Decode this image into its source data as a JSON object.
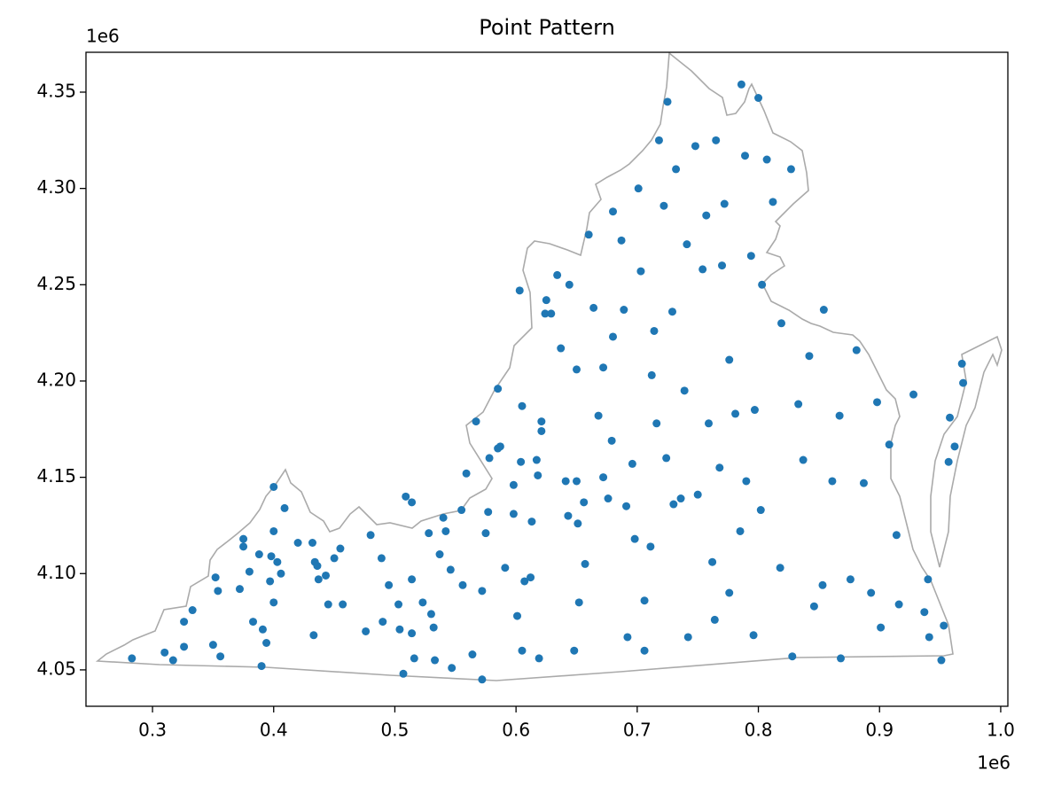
{
  "chart_data": {
    "type": "scatter",
    "title": "Point Pattern",
    "x_offset_label": "1e6",
    "y_offset_label": "1e6",
    "xlim": [
      0.2451,
      1.0059
    ],
    "ylim": [
      4.0311,
      4.3707
    ],
    "xticks": [
      0.3,
      0.4,
      0.5,
      0.6,
      0.7,
      0.8,
      0.9,
      {
        "value": 1,
        "label": "1.0"
      }
    ],
    "yticks": [
      4.05,
      {
        "value": 4.1,
        "label": "4.10"
      },
      4.15,
      {
        "value": 4.2,
        "label": "4.20"
      },
      4.25,
      {
        "value": 4.3,
        "label": "4.30"
      },
      4.35
    ],
    "series": [
      {
        "color": "#1f77b4",
        "x": [
          0.283,
          0.31,
          0.317,
          0.326,
          0.333,
          0.326,
          0.35,
          0.352,
          0.354,
          0.356,
          0.375,
          0.375,
          0.372,
          0.38,
          0.383,
          0.391,
          0.388,
          0.39,
          0.394,
          0.398,
          0.4,
          0.4,
          0.403,
          0.406,
          0.409,
          0.397,
          0.4,
          0.42,
          0.432,
          0.434,
          0.436,
          0.437,
          0.433,
          0.443,
          0.445,
          0.455,
          0.457,
          0.45,
          0.476,
          0.48,
          0.489,
          0.495,
          0.49,
          0.503,
          0.504,
          0.507,
          0.509,
          0.514,
          0.514,
          0.514,
          0.516,
          0.523,
          0.528,
          0.53,
          0.532,
          0.533,
          0.537,
          0.54,
          0.542,
          0.546,
          0.547,
          0.555,
          0.556,
          0.559,
          0.567,
          0.564,
          0.572,
          0.572,
          0.577,
          0.575,
          0.578,
          0.585,
          0.585,
          0.587,
          0.591,
          0.598,
          0.598,
          0.601,
          0.605,
          0.604,
          0.605,
          0.607,
          0.603,
          0.612,
          0.613,
          0.617,
          0.618,
          0.621,
          0.621,
          0.619,
          0.625,
          0.624,
          0.629,
          0.634,
          0.637,
          0.643,
          0.641,
          0.644,
          0.65,
          0.65,
          0.651,
          0.648,
          0.652,
          0.656,
          0.657,
          0.66,
          0.664,
          0.668,
          0.672,
          0.672,
          0.676,
          0.679,
          0.68,
          0.68,
          0.687,
          0.689,
          0.691,
          0.692,
          0.696,
          0.698,
          0.701,
          0.703,
          0.706,
          0.706,
          0.711,
          0.712,
          0.714,
          0.716,
          0.718,
          0.722,
          0.724,
          0.729,
          0.73,
          0.732,
          0.736,
          0.739,
          0.741,
          0.742,
          0.748,
          0.75,
          0.754,
          0.757,
          0.759,
          0.762,
          0.764,
          0.765,
          0.768,
          0.77,
          0.772,
          0.776,
          0.776,
          0.781,
          0.785,
          0.789,
          0.79,
          0.794,
          0.796,
          0.797,
          0.802,
          0.803,
          0.807,
          0.812,
          0.818,
          0.819,
          0.827,
          0.828,
          0.833,
          0.837,
          0.842,
          0.846,
          0.853,
          0.854,
          0.861,
          0.867,
          0.868,
          0.876,
          0.881,
          0.887,
          0.893,
          0.898,
          0.901,
          0.908,
          0.914,
          0.916,
          0.928,
          0.937,
          0.94,
          0.941,
          0.951,
          0.953,
          0.958,
          0.962,
          0.968,
          0.969,
          0.957,
          0.786,
          0.725,
          0.8
        ],
        "values": [
          4.056,
          4.059,
          4.055,
          4.075,
          4.081,
          4.062,
          4.063,
          4.098,
          4.091,
          4.057,
          4.118,
          4.114,
          4.092,
          4.101,
          4.075,
          4.071,
          4.11,
          4.052,
          4.064,
          4.109,
          4.122,
          4.145,
          4.106,
          4.1,
          4.134,
          4.096,
          4.085,
          4.116,
          4.116,
          4.106,
          4.104,
          4.097,
          4.068,
          4.099,
          4.084,
          4.113,
          4.084,
          4.108,
          4.07,
          4.12,
          4.108,
          4.094,
          4.075,
          4.084,
          4.071,
          4.048,
          4.14,
          4.137,
          4.097,
          4.069,
          4.056,
          4.085,
          4.121,
          4.079,
          4.072,
          4.055,
          4.11,
          4.129,
          4.122,
          4.102,
          4.051,
          4.133,
          4.094,
          4.152,
          4.179,
          4.058,
          4.091,
          4.045,
          4.132,
          4.121,
          4.16,
          4.196,
          4.165,
          4.166,
          4.103,
          4.146,
          4.131,
          4.078,
          4.187,
          4.158,
          4.06,
          4.096,
          4.247,
          4.098,
          4.127,
          4.159,
          4.151,
          4.179,
          4.174,
          4.056,
          4.242,
          4.235,
          4.235,
          4.255,
          4.217,
          4.13,
          4.148,
          4.25,
          4.206,
          4.148,
          4.126,
          4.06,
          4.085,
          4.137,
          4.105,
          4.276,
          4.238,
          4.182,
          4.207,
          4.15,
          4.139,
          4.169,
          4.223,
          4.288,
          4.273,
          4.237,
          4.135,
          4.067,
          4.157,
          4.118,
          4.3,
          4.257,
          4.086,
          4.06,
          4.114,
          4.203,
          4.226,
          4.178,
          4.325,
          4.291,
          4.16,
          4.236,
          4.136,
          4.31,
          4.139,
          4.195,
          4.271,
          4.067,
          4.322,
          4.141,
          4.258,
          4.286,
          4.178,
          4.106,
          4.076,
          4.325,
          4.155,
          4.26,
          4.292,
          4.211,
          4.09,
          4.183,
          4.122,
          4.317,
          4.148,
          4.265,
          4.068,
          4.185,
          4.133,
          4.25,
          4.315,
          4.293,
          4.103,
          4.23,
          4.31,
          4.057,
          4.188,
          4.159,
          4.213,
          4.083,
          4.094,
          4.237,
          4.148,
          4.182,
          4.056,
          4.097,
          4.216,
          4.147,
          4.09,
          4.189,
          4.072,
          4.167,
          4.12,
          4.084,
          4.193,
          4.08,
          4.097,
          4.067,
          4.055,
          4.073,
          4.181,
          4.166,
          4.209,
          4.199,
          4.158,
          4.354,
          4.345,
          4.347
        ]
      }
    ]
  }
}
